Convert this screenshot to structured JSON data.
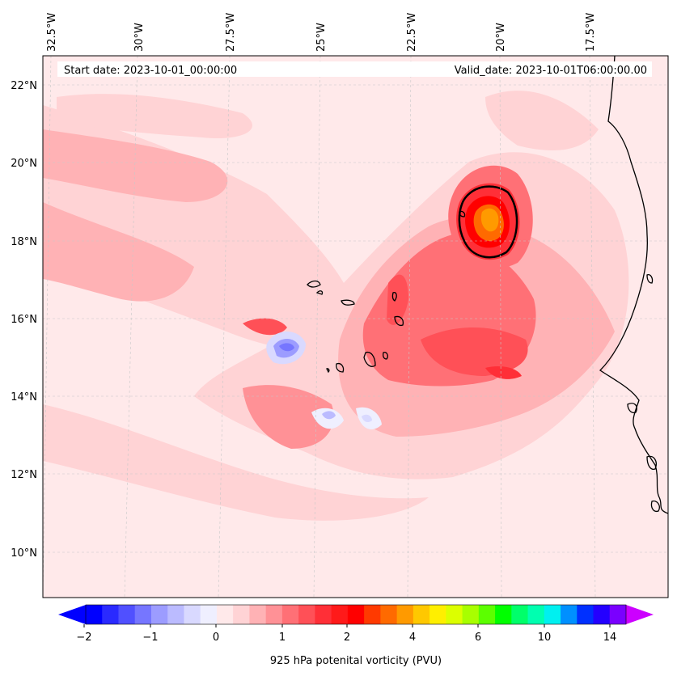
{
  "header": {
    "start_label": "Start date: 2023-10-01_00:00:00",
    "valid_label": "Valid_date: 2023-10-01T06:00:00.00"
  },
  "map": {
    "lon_labels": [
      "32.5°W",
      "30°W",
      "27.5°W",
      "25°W",
      "22.5°W",
      "20°W",
      "17.5°W"
    ],
    "lat_labels": [
      "22°N",
      "20°N",
      "18°N",
      "16°N",
      "14°N",
      "12°N",
      "10°N"
    ],
    "background_color": "#ffe9ea",
    "coastline_color": "#000000"
  },
  "colorbar": {
    "title": "925 hPa potenital vorticity (PVU)",
    "tick_labels": [
      "−2",
      "−1",
      "0",
      "1",
      "2",
      "4",
      "6",
      "10",
      "14"
    ],
    "colors": [
      "#0000ff",
      "#2a2aff",
      "#5050ff",
      "#7676ff",
      "#9c9cff",
      "#bbbbff",
      "#d9d9ff",
      "#efefff",
      "#ffe9ea",
      "#ffd3d5",
      "#ffb2b5",
      "#ff9196",
      "#ff7076",
      "#ff5057",
      "#ff2f37",
      "#ff1a1a",
      "#ff0000",
      "#ff3a00",
      "#ff6a00",
      "#ff9a00",
      "#ffc800",
      "#ffef00",
      "#dcff00",
      "#a8ff00",
      "#5cff00",
      "#00ff00",
      "#00ff6a",
      "#00ffb0",
      "#00f0f0",
      "#0090ff",
      "#0030ff",
      "#2400ff",
      "#7a00ff"
    ],
    "under_color": "#0000ff",
    "over_color": "#cc00ff"
  }
}
